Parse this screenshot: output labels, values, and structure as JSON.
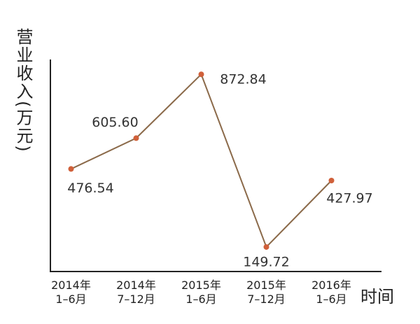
{
  "chart_data": {
    "type": "line",
    "y_label": "营业收入(万元)",
    "x_label": "时间",
    "categories": [
      "2014年\n1–6月",
      "2014年\n7–12月",
      "2015年\n1–6月",
      "2015年\n7–12月",
      "2016年\n1–6月"
    ],
    "values": [
      476.54,
      605.6,
      872.84,
      149.72,
      427.97
    ],
    "value_labels": [
      "476.54",
      "605.60",
      "872.84",
      "149.72",
      "427.97"
    ],
    "color": "#8b6a4a",
    "marker_color": "#d0603a",
    "ylim": [
      47,
      935
    ]
  }
}
